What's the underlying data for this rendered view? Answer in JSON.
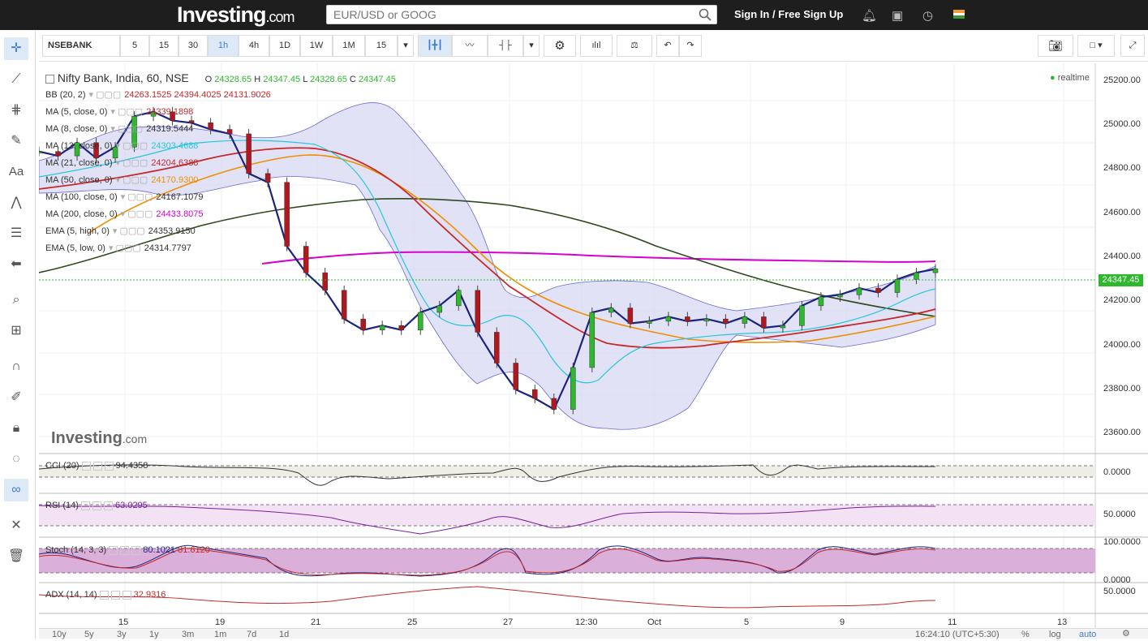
{
  "header": {
    "logo_main": "Investing",
    "logo_suffix": ".com",
    "search_placeholder": "EUR/USD or GOOG",
    "signin_label": "Sign In / Free Sign Up"
  },
  "toolbar": {
    "symbol": "NSEBANK",
    "intervals": [
      "5",
      "15",
      "30",
      "1h",
      "4h",
      "1D",
      "1W",
      "1M",
      "15"
    ],
    "active_interval": "1h"
  },
  "legend": {
    "title": "Nifty Bank, India, 60, NSE",
    "ohlc": {
      "o_label": "O",
      "o": "24328.65",
      "h_label": "H",
      "h": "24347.45",
      "l_label": "L",
      "l": "24328.65",
      "c_label": "C",
      "c": "24347.45"
    },
    "realtime": "realtime",
    "indicators": [
      {
        "name": "BB (20, 2)",
        "value": "24263.1525  24394.4025  24131.9026",
        "color": "#c62828"
      },
      {
        "name": "MA (5, close, 0)",
        "value": "24339.1898",
        "color": "#c62828"
      },
      {
        "name": "MA (8, close, 0)",
        "value": "24319.5444",
        "color": "#333333"
      },
      {
        "name": "MA (13, close, 0)",
        "value": "24303.4688",
        "color": "#26c6da"
      },
      {
        "name": "MA (21, close, 0)",
        "value": "24204.6388",
        "color": "#c62828"
      },
      {
        "name": "MA (50, close, 0)",
        "value": "24170.9300",
        "color": "#ef8f00"
      },
      {
        "name": "MA (100, close, 0)",
        "value": "24167.1079",
        "color": "#333333"
      },
      {
        "name": "MA (200, close, 0)",
        "value": "24433.8075",
        "color": "#d400d4"
      },
      {
        "name": "EMA (5, high, 0)",
        "value": "24353.9150",
        "color": "#333333"
      },
      {
        "name": "EMA (5, low, 0)",
        "value": "24314.7797",
        "color": "#333333"
      }
    ]
  },
  "watermark": {
    "main": "Investing",
    "suffix": ".com"
  },
  "price_axis": [
    "25200.00",
    "25000.00",
    "24800.00",
    "24600.00",
    "24400.00",
    "24200.00",
    "24000.00",
    "23800.00",
    "23600.00"
  ],
  "last_price": "24347.45",
  "panels": [
    {
      "name": "CCI (20)",
      "values": [
        "94.4358"
      ],
      "colors": [
        "#333333"
      ],
      "axis": [
        "0.0000"
      ]
    },
    {
      "name": "RSI (14)",
      "values": [
        "63.0295"
      ],
      "colors": [
        "#7b1fa2"
      ],
      "axis": [
        "50.0000"
      ]
    },
    {
      "name": "Stoch (14, 3, 3)",
      "values": [
        "80.1021",
        "81.6120"
      ],
      "colors": [
        "#1a237e",
        "#c62828"
      ],
      "axis": [
        "100.0000",
        "0.0000"
      ]
    },
    {
      "name": "ADX (14, 14)",
      "values": [
        "32.9316"
      ],
      "colors": [
        "#c62828"
      ],
      "axis": [
        "50.0000"
      ]
    }
  ],
  "x_axis": [
    "15",
    "19",
    "21",
    "25",
    "27",
    "12:30",
    "Oct",
    "5",
    "9",
    "11",
    "13"
  ],
  "bottom": {
    "ranges": [
      "10y",
      "5y",
      "3y",
      "1y",
      "3m",
      "1m",
      "7d",
      "1d"
    ],
    "time": "16:24:10 (UTC+5:30)",
    "pct": "%",
    "log": "log",
    "auto": "auto"
  },
  "chart_data": {
    "type": "line",
    "title": "Nifty Bank, India, 60, NSE",
    "ylim": [
      23550,
      25280
    ],
    "x_ticks": [
      "15",
      "19",
      "21",
      "25",
      "27",
      "12:30",
      "Oct",
      "5",
      "9",
      "11",
      "13"
    ],
    "series": [
      {
        "name": "Close",
        "values": [
          24880,
          24860,
          24920,
          24850,
          24900,
          25040,
          25060,
          25020,
          25010,
          24980,
          24960,
          24780,
          24740,
          24450,
          24330,
          24250,
          24120,
          24070,
          24090,
          24070,
          24150,
          24180,
          24250,
          24060,
          23920,
          23800,
          23760,
          23710,
          23900,
          24150,
          24170,
          24100,
          24110,
          24130,
          24110,
          24120,
          24100,
          24130,
          24080,
          24090,
          24180,
          24220,
          24230,
          24260,
          24240,
          24300,
          24330,
          24347
        ]
      },
      {
        "name": "MA (200, close, 0)",
        "values": [
          24420,
          24440,
          24460,
          24475,
          24480,
          24482,
          24483,
          24480,
          24470,
          24460,
          24450,
          24445,
          24440,
          24436,
          24434
        ]
      },
      {
        "name": "MA (100, close, 0)",
        "values": [
          24380,
          24450,
          24550,
          24650,
          24720,
          24740,
          24740,
          24700,
          24620,
          24540,
          24450,
          24350,
          24260,
          24200,
          24167
        ]
      },
      {
        "name": "MA (50, close, 0)",
        "values": [
          24680,
          24850,
          24960,
          24920,
          24700,
          24450,
          24270,
          24120,
          24080,
          24080,
          24090,
          24110,
          24130,
          24171
        ]
      }
    ]
  }
}
